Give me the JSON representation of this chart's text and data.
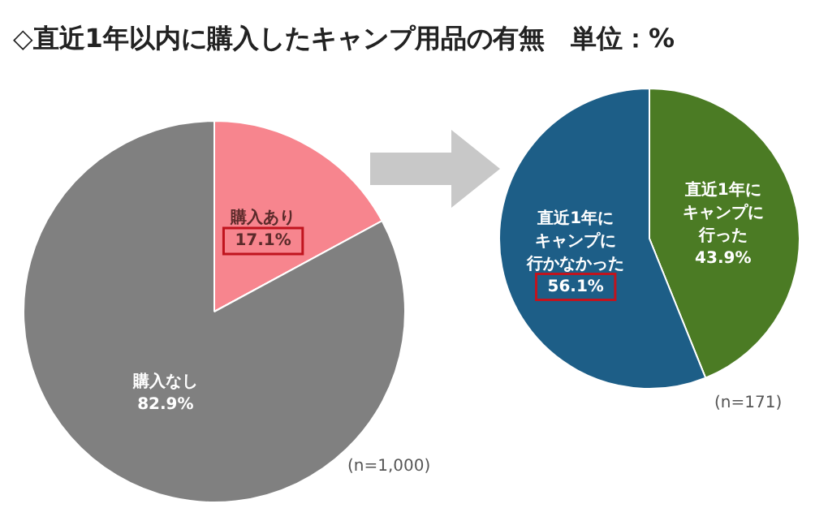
{
  "chart_data": [
    {
      "type": "pie",
      "title": "◇直近1年以内に購入したキャンプ用品の有無　単位：%",
      "categories": [
        "購入あり",
        "購入なし"
      ],
      "values": [
        17.1,
        82.9
      ],
      "value_labels": [
        "17.1%",
        "82.9%"
      ],
      "colors": [
        "#f7858e",
        "#808080"
      ],
      "annotations": [
        "(n=1,000)"
      ],
      "legend": false
    },
    {
      "type": "pie",
      "categories": [
        "直近1年にキャンプに行った",
        "直近1年にキャンプに行かなかった"
      ],
      "values": [
        43.9,
        56.1
      ],
      "value_labels": [
        "43.9%",
        "56.1%"
      ],
      "colors": [
        "#4b7b24",
        "#1d5e87"
      ],
      "annotations": [
        "(n=171)"
      ],
      "legend": false
    }
  ]
}
